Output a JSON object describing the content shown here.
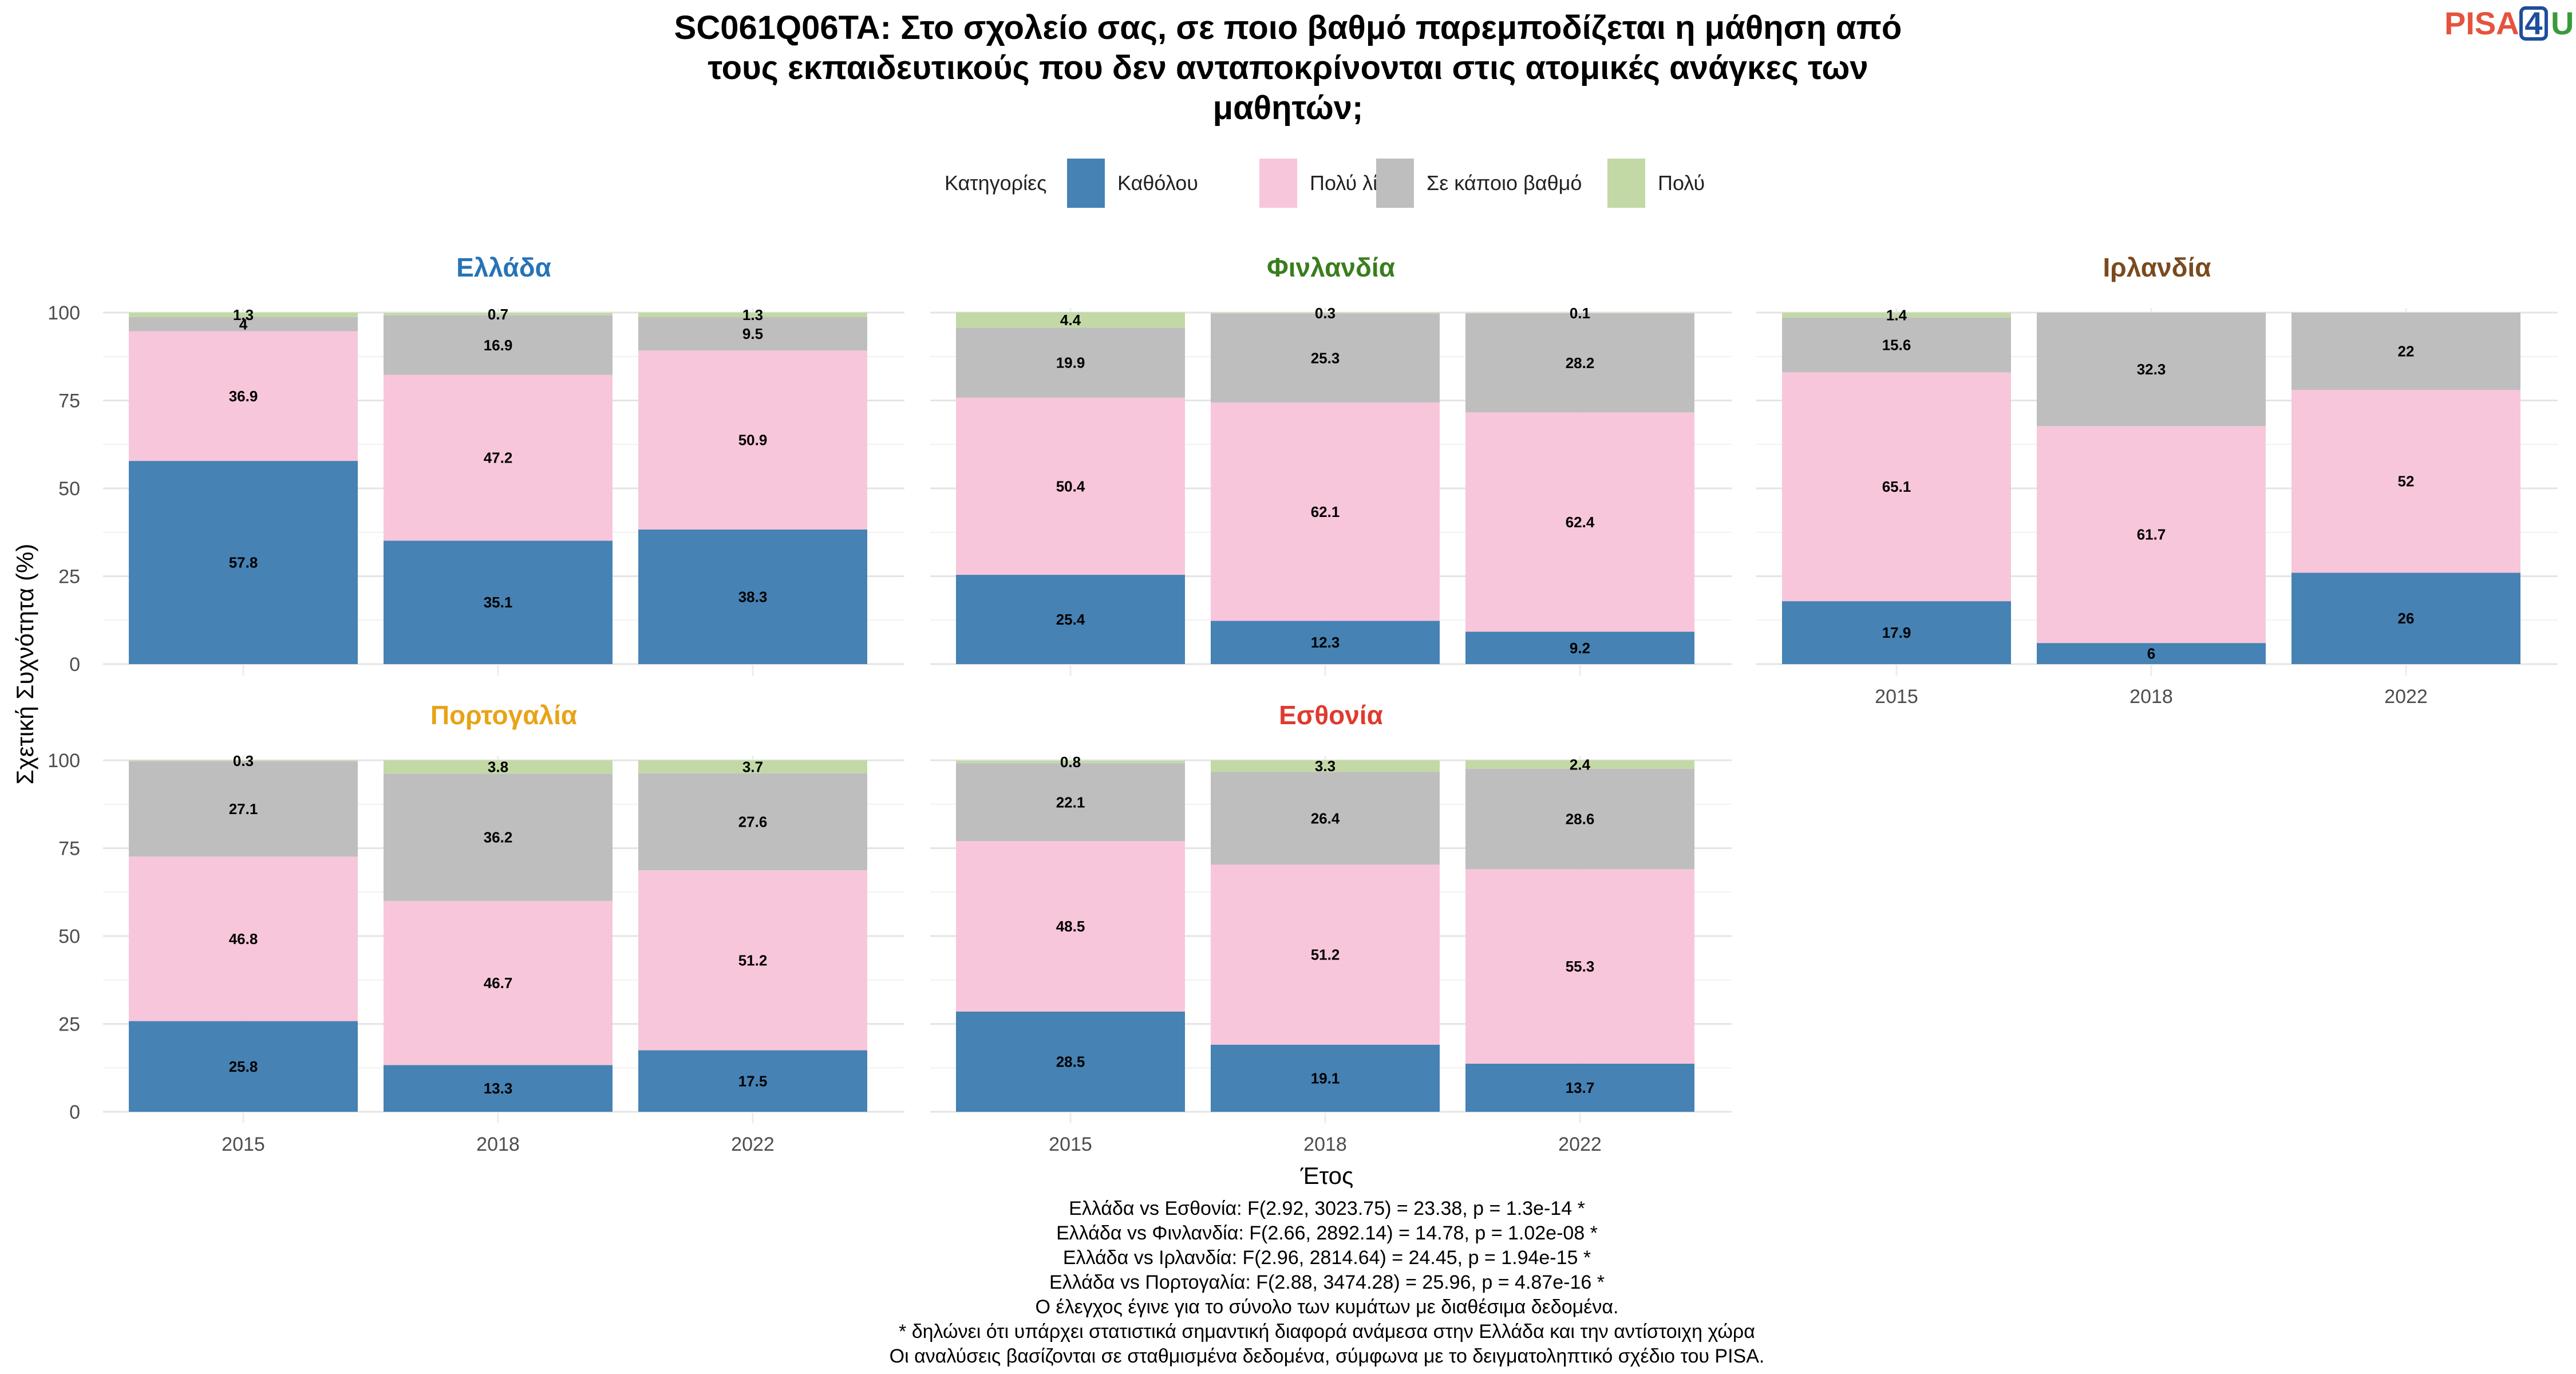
{
  "title_lines": [
    "SC061Q06TA: Στο σχολείο σας, σε ποιο βαθμό παρεμποδίζεται η μάθηση από",
    "τους εκπαιδευτικούς που δεν ανταποκρίνονται στις ατομικές ανάγκες των",
    "μαθητών;"
  ],
  "logo": {
    "part1": "PISA",
    "part2": "4",
    "part3": "U",
    "color1": "#e5533d",
    "color2": "#1f4e9c",
    "color3": "#3a9a3a"
  },
  "legend": {
    "title": "Κατηγορίες",
    "items": [
      {
        "label": "Καθόλου",
        "color": "#4682b4"
      },
      {
        "label": "Πολύ λίγο",
        "color": "#f8c6da"
      },
      {
        "label": "Σε κάποιο βαθμό",
        "color": "#bebebe"
      },
      {
        "label": "Πολύ",
        "color": "#c2d9a6"
      }
    ]
  },
  "ylabel": "Σχετική Συχνότητα (%)",
  "xlabel": "Έτος",
  "chart_data": {
    "type": "bar",
    "stacked": true,
    "categories": [
      "2015",
      "2018",
      "2022"
    ],
    "ylim": [
      0,
      100
    ],
    "yticks": [
      "0",
      "25",
      "50",
      "75",
      "100"
    ],
    "grid": true,
    "legend_position": "top",
    "series_names": [
      "Καθόλου",
      "Πολύ λίγο",
      "Σε κάποιο βαθμό",
      "Πολύ"
    ],
    "panels": [
      {
        "country": "Ελλάδα",
        "title_color": "#2673b8",
        "values": [
          [
            57.8,
            36.9,
            4,
            1.3
          ],
          [
            35.1,
            47.2,
            16.9,
            0.7
          ],
          [
            38.3,
            50.9,
            9.5,
            1.3
          ]
        ]
      },
      {
        "country": "Φινλανδία",
        "title_color": "#3a7d1e",
        "values": [
          [
            25.4,
            50.4,
            19.9,
            4.4
          ],
          [
            12.3,
            62.1,
            25.3,
            0.3
          ],
          [
            9.2,
            62.4,
            28.2,
            0.1
          ]
        ]
      },
      {
        "country": "Ιρλανδία",
        "title_color": "#7a4a1e",
        "values": [
          [
            17.9,
            65.1,
            15.6,
            1.4
          ],
          [
            6,
            61.7,
            32.3,
            null
          ],
          [
            26,
            52,
            22,
            null
          ]
        ]
      },
      {
        "country": "Πορτογαλία",
        "title_color": "#e8a317",
        "values": [
          [
            25.8,
            46.8,
            27.1,
            0.3
          ],
          [
            13.3,
            46.7,
            36.2,
            3.8
          ],
          [
            17.5,
            51.2,
            27.6,
            3.7
          ]
        ]
      },
      {
        "country": "Εσθονία",
        "title_color": "#e03a2f",
        "values": [
          [
            28.5,
            48.5,
            22.1,
            0.8
          ],
          [
            19.1,
            51.2,
            26.4,
            3.3
          ],
          [
            13.7,
            55.3,
            28.6,
            2.4
          ]
        ]
      }
    ]
  },
  "footer_lines": [
    "Ελλάδα vs Εσθονία: F(2.92, 3023.75) = 23.38, p = 1.3e-14 *",
    "Ελλάδα vs Φινλανδία: F(2.66, 2892.14) = 14.78, p = 1.02e-08 *",
    "Ελλάδα vs Ιρλανδία: F(2.96, 2814.64) = 24.45, p = 1.94e-15 *",
    "Ελλάδα vs Πορτογαλία: F(2.88, 3474.28) = 25.96, p = 4.87e-16 *",
    "Ο έλεγχος έγινε για το σύνολο των κυμάτων με διαθέσιμα δεδομένα.",
    "* δηλώνει ότι υπάρχει στατιστικά σημαντική διαφορά ανάμεσα στην Ελλάδα και την αντίστοιχη χώρα",
    "Οι αναλύσεις βασίζονται σε σταθμισμένα δεδομένα, σύμφωνα με το δειγματοληπτικό σχέδιο του PISA."
  ]
}
